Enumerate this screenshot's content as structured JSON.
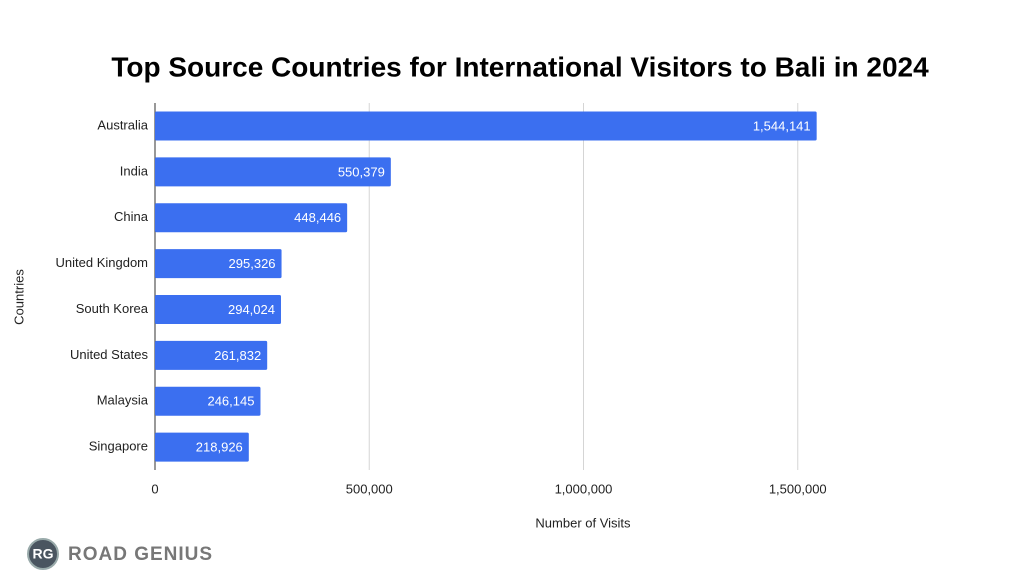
{
  "chart_data": {
    "type": "bar",
    "orientation": "horizontal",
    "title": "Top Source Countries for International Visitors to Bali in 2024",
    "x_label": "Number of Visits",
    "y_label": "Countries",
    "categories": [
      "Australia",
      "India",
      "China",
      "United Kingdom",
      "South Korea",
      "United States",
      "Malaysia",
      "Singapore"
    ],
    "values": [
      1544141,
      550379,
      448446,
      295326,
      294024,
      261832,
      246145,
      218926
    ],
    "value_labels": [
      "1,544,141",
      "550,379",
      "448,446",
      "295,326",
      "294,024",
      "261,832",
      "246,145",
      "218,926"
    ],
    "color": "#3b6ff0",
    "xlim": [
      0,
      2000000
    ],
    "xticks": [
      0,
      {
        "value": 500000,
        "label": "500,000"
      },
      {
        "value": 1000000,
        "label": "1,000,000"
      },
      {
        "value": 1500000,
        "label": "1,500,000"
      }
    ],
    "grid": true
  },
  "logo": {
    "badge": "RG",
    "text": "ROAD GENIUS"
  }
}
